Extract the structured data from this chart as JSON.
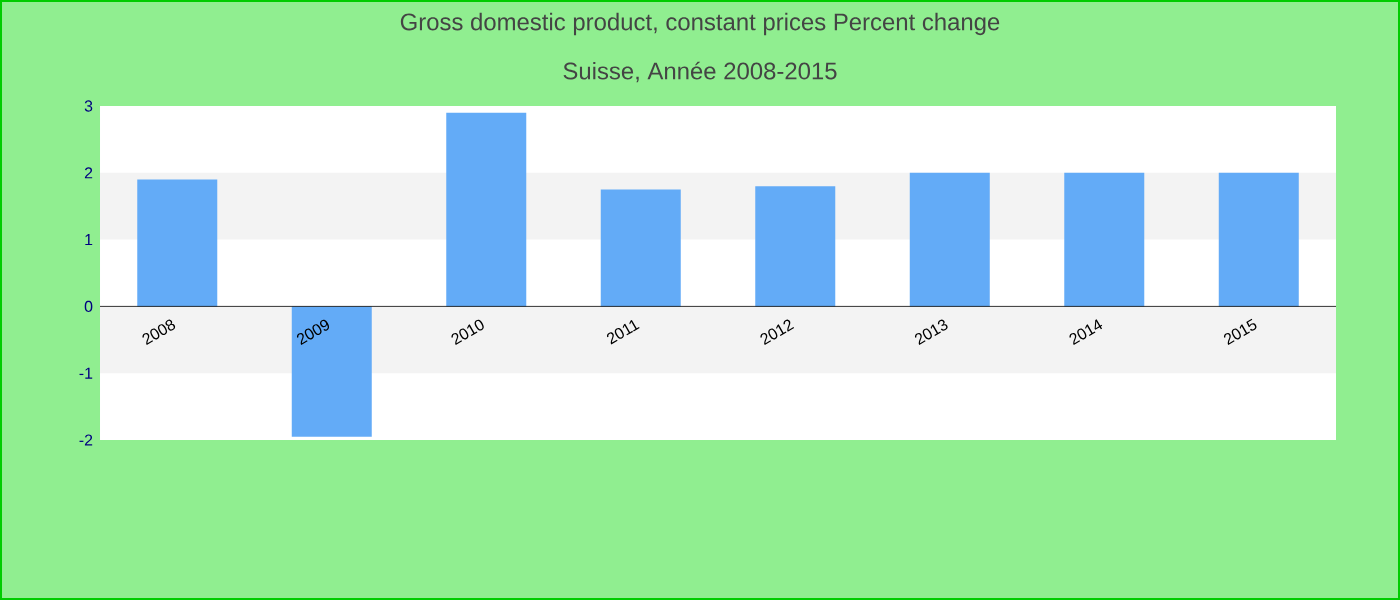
{
  "chart_data": {
    "type": "bar",
    "title": "Gross domestic product, constant prices  Percent change",
    "subtitle": "Suisse, Année 2008-2015",
    "categories": [
      "2008",
      "2009",
      "2010",
      "2011",
      "2012",
      "2013",
      "2014",
      "2015"
    ],
    "values": [
      1.9,
      -1.95,
      2.9,
      1.75,
      1.8,
      2.0,
      2.0,
      2.0
    ],
    "color": "#63abf7",
    "ylim": [
      -2,
      3
    ],
    "yticks": [
      -2,
      -1,
      0,
      1,
      2,
      3
    ]
  }
}
